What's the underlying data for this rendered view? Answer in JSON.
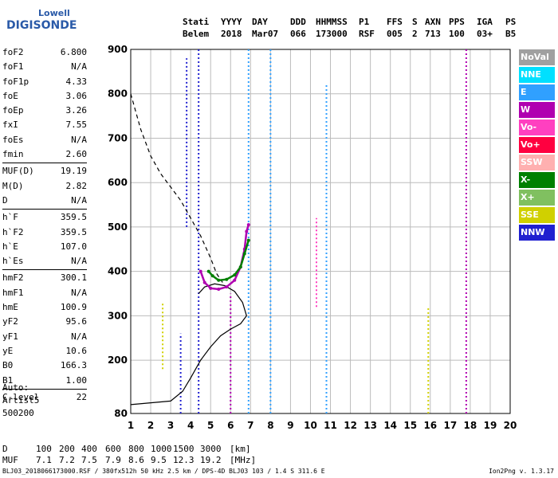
{
  "logo": {
    "line1": "Lowell",
    "line2": "DIGISONDE"
  },
  "header": {
    "columns": [
      {
        "top": "Stati",
        "bottom": "Belem"
      },
      {
        "top": "YYYY",
        "bottom": "2018"
      },
      {
        "top": "DAY",
        "bottom": "Mar07"
      },
      {
        "top": "DDD",
        "bottom": "066"
      },
      {
        "top": "HHMMSS",
        "bottom": "173000"
      },
      {
        "top": "P1",
        "bottom": "RSF"
      },
      {
        "top": "FFS",
        "bottom": "005"
      },
      {
        "top": "S",
        "bottom": "2"
      },
      {
        "top": "AXN",
        "bottom": "713"
      },
      {
        "top": "PPS",
        "bottom": "100"
      },
      {
        "top": "IGA",
        "bottom": "03+"
      },
      {
        "top": "PS",
        "bottom": "B5"
      }
    ]
  },
  "params": [
    [
      {
        "k": "foF2",
        "v": "6.800"
      },
      {
        "k": "foF1",
        "v": "N/A"
      },
      {
        "k": "foF1p",
        "v": "4.33"
      },
      {
        "k": "foE",
        "v": "3.06"
      },
      {
        "k": "foEp",
        "v": "3.26"
      },
      {
        "k": "fxI",
        "v": "7.55"
      },
      {
        "k": "foEs",
        "v": "N/A"
      },
      {
        "k": "fmin",
        "v": "2.60"
      }
    ],
    [
      {
        "k": "MUF(D)",
        "v": "19.19"
      },
      {
        "k": "M(D)",
        "v": "2.82"
      },
      {
        "k": "D",
        "v": "N/A"
      }
    ],
    [
      {
        "k": "h`F",
        "v": "359.5"
      },
      {
        "k": "h`F2",
        "v": "359.5"
      },
      {
        "k": "h`E",
        "v": "107.0"
      },
      {
        "k": "h`Es",
        "v": "N/A"
      }
    ],
    [
      {
        "k": "hmF2",
        "v": "300.1"
      },
      {
        "k": "hmF1",
        "v": "N/A"
      },
      {
        "k": "hmE",
        "v": "100.9"
      },
      {
        "k": "yF2",
        "v": "95.6"
      },
      {
        "k": "yF1",
        "v": "N/A"
      },
      {
        "k": "yE",
        "v": "10.6"
      },
      {
        "k": "B0",
        "v": "166.3"
      },
      {
        "k": "B1",
        "v": "1.00"
      }
    ],
    [
      {
        "k": "C-level",
        "v": "22"
      }
    ]
  ],
  "auto": {
    "line1": "Auto:",
    "line2": "Artist5",
    "line3": "500200"
  },
  "legend": [
    {
      "label": "NoVal",
      "color": "#a0a0a0"
    },
    {
      "label": "NNE",
      "color": "#00e0ff"
    },
    {
      "label": "E",
      "color": "#30a0ff"
    },
    {
      "label": "W",
      "color": "#b000b0"
    },
    {
      "label": "Vo-",
      "color": "#ff40c0"
    },
    {
      "label": "Vo+",
      "color": "#ff0040"
    },
    {
      "label": "SSW",
      "color": "#ffb0b0"
    },
    {
      "label": "X-",
      "color": "#008000"
    },
    {
      "label": "X+",
      "color": "#80c060"
    },
    {
      "label": "SSE",
      "color": "#d0d000"
    },
    {
      "label": "NNW",
      "color": "#2020d0"
    }
  ],
  "mufrow": {
    "d_label": "D",
    "d_values": [
      "100",
      "200",
      "400",
      "600",
      "800",
      "1000",
      "1500",
      "3000"
    ],
    "d_unit": "[km]",
    "m_label": "MUF",
    "m_values": [
      "7.1",
      "7.2",
      "7.5",
      "7.9",
      "8.6",
      "9.5",
      "12.3",
      "19.2"
    ],
    "m_unit": "[MHz]"
  },
  "footer": {
    "left": "BLJ03_2018066173000.RSF / 380fx512h 50 kHz 2.5 km / DPS-4D BLJ03 103 / 1.4 S 311.6 E",
    "right": "Ion2Png v. 1.3.17"
  },
  "chart_data": {
    "type": "scatter",
    "xlim": [
      1,
      20
    ],
    "ylim": [
      80,
      900
    ],
    "x_ticks": [
      1,
      2,
      3,
      4,
      5,
      6,
      7,
      8,
      9,
      10,
      11,
      12,
      13,
      14,
      15,
      16,
      17,
      18,
      19,
      20
    ],
    "y_ticks": [
      80,
      200,
      300,
      400,
      500,
      600,
      700,
      800,
      900
    ],
    "grid": true,
    "profile": [
      [
        1.0,
        100
      ],
      [
        2.0,
        104
      ],
      [
        3.0,
        108
      ],
      [
        3.6,
        130
      ],
      [
        4.0,
        160
      ],
      [
        4.5,
        200
      ],
      [
        5.0,
        230
      ],
      [
        5.5,
        255
      ],
      [
        6.0,
        270
      ],
      [
        6.5,
        282
      ],
      [
        6.8,
        300
      ],
      [
        6.6,
        330
      ],
      [
        6.2,
        355
      ],
      [
        5.7,
        368
      ],
      [
        5.2,
        372
      ],
      [
        4.7,
        365
      ],
      [
        4.4,
        350
      ]
    ],
    "dashed_curve": [
      [
        1.0,
        800
      ],
      [
        1.5,
        720
      ],
      [
        2.0,
        660
      ],
      [
        2.5,
        620
      ],
      [
        3.0,
        590
      ],
      [
        3.5,
        560
      ],
      [
        4.0,
        520
      ],
      [
        4.5,
        480
      ],
      [
        5.0,
        430
      ],
      [
        5.3,
        395
      ],
      [
        5.6,
        375
      ]
    ],
    "traces": [
      {
        "name": "W",
        "color": "#b000b0",
        "points": [
          [
            4.5,
            400
          ],
          [
            4.7,
            375
          ],
          [
            5.0,
            362
          ],
          [
            5.4,
            360
          ],
          [
            5.8,
            365
          ],
          [
            6.2,
            380
          ],
          [
            6.5,
            410
          ],
          [
            6.7,
            450
          ],
          [
            6.8,
            490
          ],
          [
            6.9,
            505
          ]
        ]
      },
      {
        "name": "X-",
        "color": "#008000",
        "points": [
          [
            4.9,
            400
          ],
          [
            5.1,
            390
          ],
          [
            5.4,
            380
          ],
          [
            5.8,
            382
          ],
          [
            6.2,
            392
          ],
          [
            6.5,
            410
          ],
          [
            6.7,
            440
          ],
          [
            6.9,
            470
          ]
        ]
      }
    ],
    "vertical_streaks": [
      {
        "x": 4.4,
        "y0": 80,
        "y1": 900,
        "color": "#2020d0"
      },
      {
        "x": 3.5,
        "y0": 80,
        "y1": 260,
        "color": "#2020d0"
      },
      {
        "x": 6.0,
        "y0": 80,
        "y1": 350,
        "color": "#b000b0"
      },
      {
        "x": 6.9,
        "y0": 80,
        "y1": 900,
        "color": "#30a0ff"
      },
      {
        "x": 8.0,
        "y0": 80,
        "y1": 900,
        "color": "#30a0ff"
      },
      {
        "x": 10.3,
        "y0": 320,
        "y1": 520,
        "color": "#ff40c0"
      },
      {
        "x": 10.8,
        "y0": 80,
        "y1": 820,
        "color": "#30a0ff"
      },
      {
        "x": 17.8,
        "y0": 80,
        "y1": 900,
        "color": "#b000b0"
      },
      {
        "x": 15.9,
        "y0": 80,
        "y1": 320,
        "color": "#d0d000"
      },
      {
        "x": 3.8,
        "y0": 500,
        "y1": 880,
        "color": "#2020d0"
      },
      {
        "x": 2.6,
        "y0": 180,
        "y1": 330,
        "color": "#d0d000"
      }
    ]
  }
}
